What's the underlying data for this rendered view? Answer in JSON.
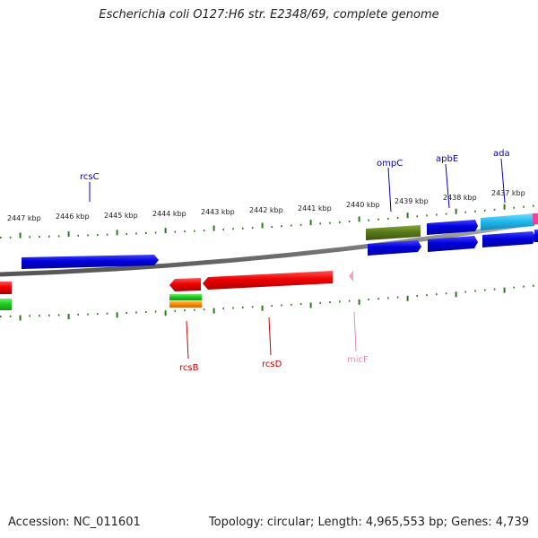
{
  "title": "Escherichia coli O127:H6 str. E2348/69, complete genome",
  "ticks": [
    "2447 kbp",
    "2446 kbp",
    "2445 kbp",
    "2444 kbp",
    "2443 kbp",
    "2442 kbp",
    "2441 kbp",
    "2440 kbp",
    "2439 kbp",
    "2438 kbp",
    "2437 kbp"
  ],
  "genes": {
    "top": [
      {
        "name": "rcsC",
        "color": "#0000cc"
      },
      {
        "name": "ompC",
        "color": "#0000cc"
      },
      {
        "name": "apbE",
        "color": "#0000cc"
      },
      {
        "name": "ada",
        "color": "#0000cc"
      }
    ],
    "bottom": [
      {
        "name": "rcsB",
        "color": "#cc0000"
      },
      {
        "name": "rcsD",
        "color": "#cc0000"
      },
      {
        "name": "micF",
        "color": "#ee88bb"
      }
    ]
  },
  "footer": {
    "accession": "Accession: NC_011601",
    "summary": "Topology: circular; Length: 4,965,553 bp; Genes: 4,739"
  },
  "colors": {
    "blue": "#0000dd",
    "red": "#ee0000",
    "olive": "#5a7a1a",
    "cyan": "#22bbee",
    "green": "#22cc22",
    "orange": "#ff8800",
    "pink": "#ee4499",
    "tick": "#2a7a1a",
    "backbone": "#888888"
  }
}
